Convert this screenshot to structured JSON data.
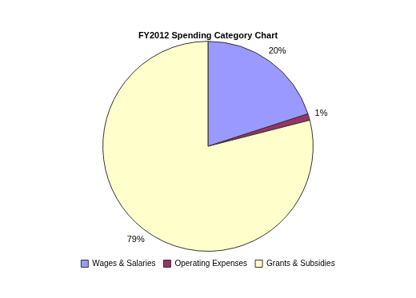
{
  "chart_data": {
    "type": "pie",
    "title": "FY2012 Spending Category Chart",
    "categories": [
      "Wages & Salaries",
      "Operating Expenses",
      "Grants & Subsidies"
    ],
    "values": [
      20,
      1,
      79
    ],
    "value_labels": [
      "20%",
      "1%",
      "79%"
    ],
    "colors": [
      "#9999ff",
      "#993366",
      "#ffffcc"
    ],
    "data_labels": true,
    "legend": "bottom"
  }
}
